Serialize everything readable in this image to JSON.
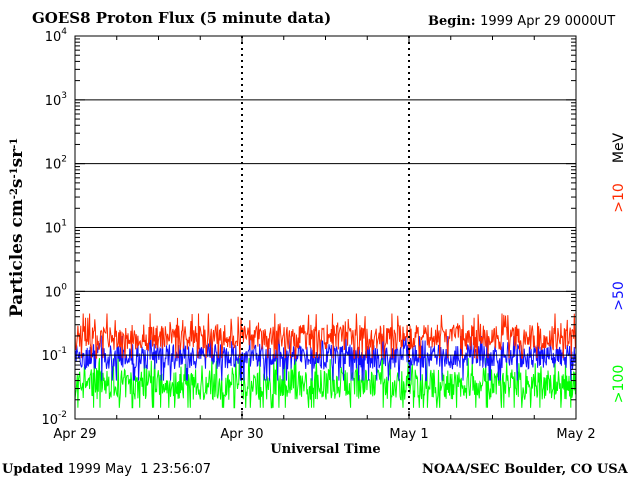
{
  "header": {
    "title": "GOES8 Proton Flux (5 minute data)",
    "begin_label": "Begin:",
    "begin_value": "1999 Apr 29 0000UT"
  },
  "footer": {
    "updated_label": "Updated",
    "updated_value": "1999 May  1 23:56:07",
    "credit": "NOAA/SEC Boulder, CO USA"
  },
  "colors": {
    "gt10": "#ff2a00",
    "gt50": "#1010ff",
    "gt100": "#00ff00",
    "grid": "#000000"
  },
  "chart_data": {
    "type": "line",
    "title": "GOES8 Proton Flux (5 minute data)",
    "xlabel": "Universal Time",
    "ylabel": "Particles cm-2s-1sr-1",
    "y_scale": "log",
    "ylim": [
      0.01,
      10000
    ],
    "y_ticks": [
      {
        "base": "10",
        "exp": "-2"
      },
      {
        "base": "10",
        "exp": "-1"
      },
      {
        "base": "10",
        "exp": "0"
      },
      {
        "base": "10",
        "exp": "1"
      },
      {
        "base": "10",
        "exp": "2"
      },
      {
        "base": "10",
        "exp": "3"
      },
      {
        "base": "10",
        "exp": "4"
      }
    ],
    "x_ticks": [
      "Apr 29",
      "Apr 30",
      "May 1",
      "May 2"
    ],
    "xlim": [
      "1999-04-29",
      "1999-05-02"
    ],
    "grid": true,
    "legend_placement": "right, vertical",
    "legend_unit": "MeV",
    "series": [
      {
        "name": ">10",
        "min": 0.09,
        "typical": [
          0.12,
          0.3
        ],
        "max": 0.45
      },
      {
        "name": ">50",
        "min": 0.04,
        "typical": [
          0.06,
          0.15
        ],
        "max": 0.2
      },
      {
        "name": ">100",
        "min": 0.015,
        "typical": [
          0.02,
          0.06
        ],
        "max": 0.09
      }
    ]
  }
}
